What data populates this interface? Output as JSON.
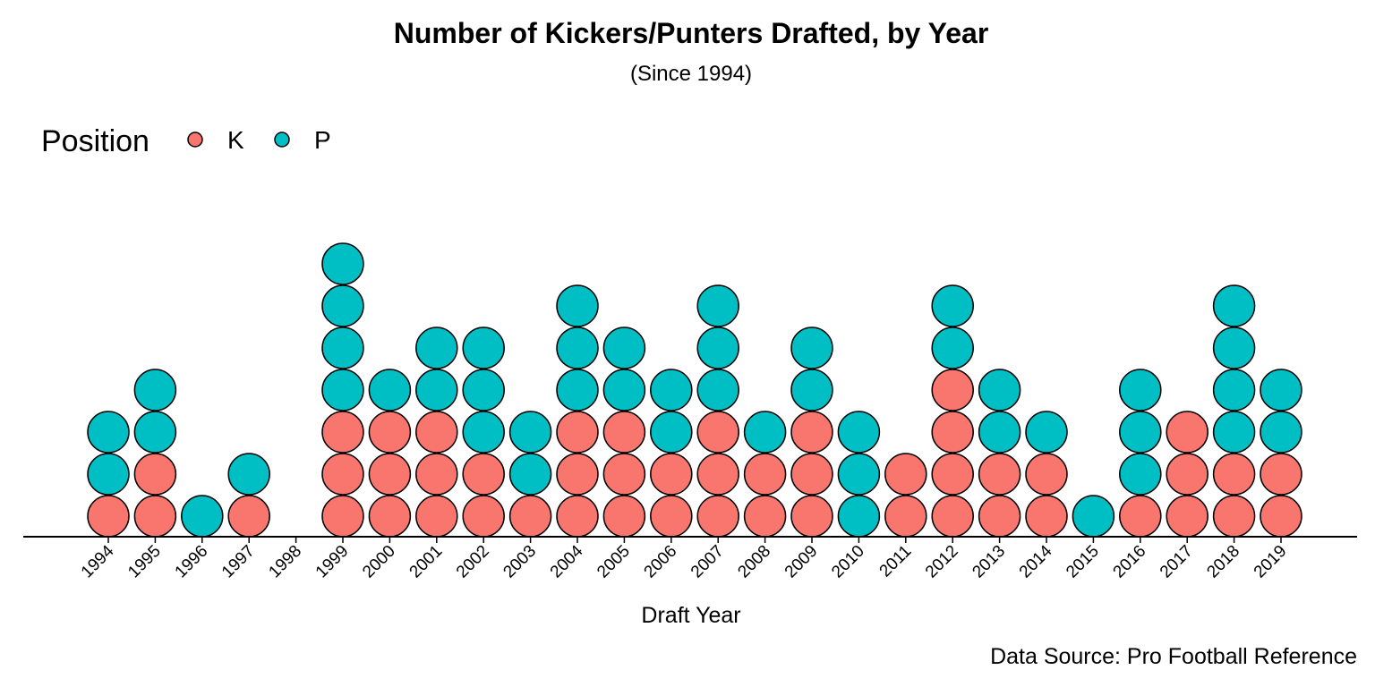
{
  "chart_data": {
    "type": "dot",
    "title": "Number of Kickers/Punters Drafted, by Year",
    "subtitle": "(Since 1994)",
    "xlabel": "Draft Year",
    "caption": "Data Source: Pro Football Reference",
    "legend": {
      "title": "Position",
      "placement": "top-left",
      "entries": [
        {
          "label": "K",
          "color": "#F8766D"
        },
        {
          "label": "P",
          "color": "#00BFC4"
        }
      ]
    },
    "categories": [
      "1994",
      "1995",
      "1996",
      "1997",
      "1998",
      "1999",
      "2000",
      "2001",
      "2002",
      "2003",
      "2004",
      "2005",
      "2006",
      "2007",
      "2008",
      "2009",
      "2010",
      "2011",
      "2012",
      "2013",
      "2014",
      "2015",
      "2016",
      "2017",
      "2018",
      "2019"
    ],
    "series": [
      {
        "name": "K",
        "color": "#F8766D",
        "values": [
          1,
          2,
          0,
          1,
          0,
          3,
          3,
          3,
          2,
          1,
          3,
          3,
          2,
          3,
          2,
          3,
          0,
          2,
          4,
          2,
          2,
          0,
          1,
          3,
          2,
          2
        ]
      },
      {
        "name": "P",
        "color": "#00BFC4",
        "values": [
          2,
          2,
          1,
          1,
          0,
          4,
          1,
          2,
          3,
          2,
          3,
          2,
          2,
          3,
          1,
          2,
          3,
          0,
          2,
          2,
          1,
          1,
          3,
          0,
          4,
          2
        ]
      }
    ],
    "grid": false
  }
}
